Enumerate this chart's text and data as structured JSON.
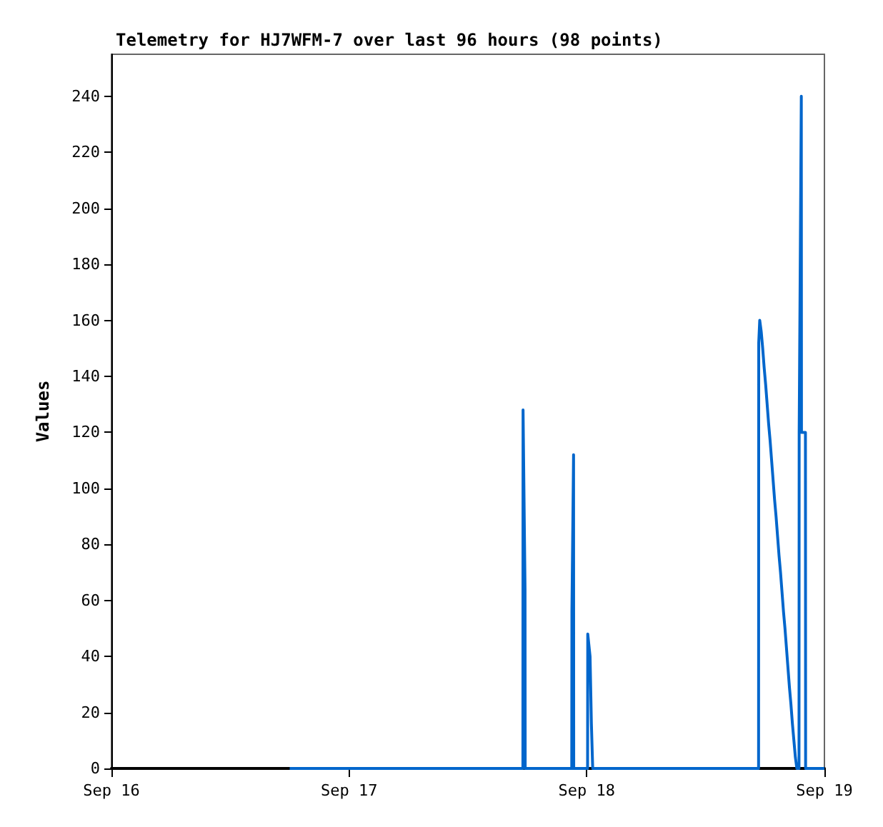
{
  "chart_data": {
    "type": "line",
    "title": "Telemetry for HJ7WFM-7 over last 96 hours (98 points)",
    "ylabel": "Values",
    "x": [
      "--09-16T18:00",
      "--09-16T21:00",
      "--09-17T00:00",
      "--09-17T03:00",
      "--09-17T06:00",
      "--09-17T09:00",
      "--09-17T12:00",
      "--09-17T15:00",
      "--09-17T17:33",
      "--09-17T17:34",
      "--09-17T17:46",
      "--09-17T17:47",
      "--09-17T20:00",
      "--09-17T22:29",
      "--09-17T22:30",
      "--09-17T22:40",
      "--09-17T22:41",
      "--09-18T00:05",
      "--09-18T00:06",
      "--09-18T00:12",
      "--09-18T00:20",
      "--09-18T00:28",
      "--09-18T00:36",
      "--09-18T03:00",
      "--09-18T06:00",
      "--09-18T09:00",
      "--09-18T12:00",
      "--09-18T15:00",
      "--09-18T17:21",
      "--09-18T17:22",
      "--09-18T17:28",
      "--09-18T17:37",
      "--09-18T17:46",
      "--09-18T17:55",
      "--09-18T18:04",
      "--09-18T18:13",
      "--09-18T18:22",
      "--09-18T18:31",
      "--09-18T18:40",
      "--09-18T18:49",
      "--09-18T18:58",
      "--09-18T19:07",
      "--09-18T19:16",
      "--09-18T19:25",
      "--09-18T19:34",
      "--09-18T19:43",
      "--09-18T19:52",
      "--09-18T20:01",
      "--09-18T20:10",
      "--09-18T20:19",
      "--09-18T20:28",
      "--09-18T20:37",
      "--09-18T20:46",
      "--09-18T20:55",
      "--09-18T21:04",
      "--09-18T21:13",
      "--09-18T21:26",
      "--09-18T21:27",
      "--09-18T21:40",
      "--09-18T21:41",
      "--09-18T22:05",
      "--09-18T22:06",
      "--09-18T23:00",
      "--09-19T00:00"
    ],
    "series": [
      {
        "color": "#0066cc",
        "values": [
          0,
          0,
          0,
          0,
          0,
          0,
          0,
          0,
          0,
          128,
          64,
          0,
          0,
          0,
          56,
          112,
          0,
          0,
          48,
          48,
          40,
          16,
          0,
          0,
          0,
          0,
          0,
          0,
          0,
          152,
          160,
          156,
          150,
          143,
          137,
          130,
          123,
          117,
          110,
          103,
          96,
          90,
          83,
          76,
          70,
          63,
          56,
          50,
          43,
          36,
          29,
          23,
          16,
          10,
          4,
          0,
          0,
          120,
          240,
          120,
          120,
          0,
          0,
          0
        ]
      }
    ],
    "xlim": [
      "--09-16",
      "--09-19"
    ],
    "xticks": [
      {
        "value": "--09-16",
        "label": "Sep 16"
      },
      {
        "value": "--09-17",
        "label": "Sep 17"
      },
      {
        "value": "--09-18",
        "label": "Sep 18"
      },
      {
        "value": "--09-19",
        "label": "Sep 19"
      }
    ],
    "ylim": [
      0,
      255
    ],
    "yticks": [
      0,
      20,
      40,
      60,
      80,
      100,
      120,
      140,
      160,
      180,
      200,
      220,
      240
    ],
    "marker": "none",
    "line_style": "solid"
  }
}
